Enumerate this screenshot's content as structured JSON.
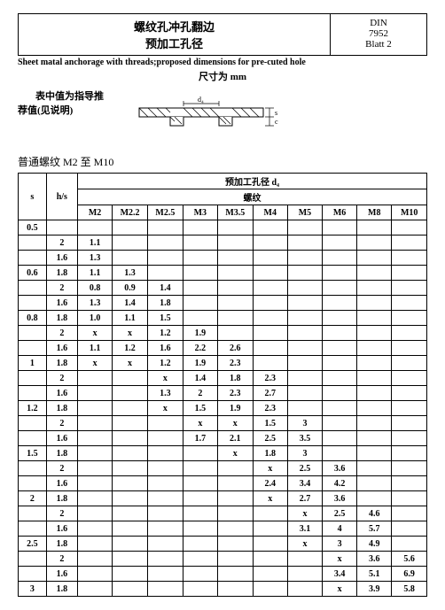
{
  "header": {
    "title_line1": "螺纹孔冲孔翻边",
    "title_line2": "预加工孔径",
    "din": "DIN",
    "num": "7952",
    "blatt": "Blatt 2"
  },
  "subtitle": "Sheet matal anchorage with threads;proposed dimensions   for pre-cuted hole",
  "unit": "尺寸为 mm",
  "note1": "表中值为指导推",
  "note2": "荐值(见说明)",
  "section": "普通螺纹 M2 至 M10",
  "table": {
    "header_main": "预加工孔径 d₄",
    "header_sub": "螺纹",
    "col_s": "s",
    "col_hs": "h/s",
    "sizes": [
      "M2",
      "M2.2",
      "M2.5",
      "M3",
      "M3.5",
      "M4",
      "M5",
      "M6",
      "M8",
      "M10"
    ],
    "rows": [
      {
        "s": "0.5",
        "hs": "",
        "v": [
          "",
          "",
          "",
          "",
          "",
          "",
          "",
          "",
          "",
          ""
        ]
      },
      {
        "s": "",
        "hs": "2",
        "v": [
          "1.1",
          "",
          "",
          "",
          "",
          "",
          "",
          "",
          "",
          ""
        ]
      },
      {
        "s": "",
        "hs": "1.6",
        "v": [
          "1.3",
          "",
          "",
          "",
          "",
          "",
          "",
          "",
          "",
          ""
        ]
      },
      {
        "s": "0.6",
        "hs": "1.8",
        "v": [
          "1.1",
          "1.3",
          "",
          "",
          "",
          "",
          "",
          "",
          "",
          ""
        ]
      },
      {
        "s": "",
        "hs": "2",
        "v": [
          "0.8",
          "0.9",
          "1.4",
          "",
          "",
          "",
          "",
          "",
          "",
          ""
        ]
      },
      {
        "s": "",
        "hs": "1.6",
        "v": [
          "1.3",
          "1.4",
          "1.8",
          "",
          "",
          "",
          "",
          "",
          "",
          ""
        ]
      },
      {
        "s": "0.8",
        "hs": "1.8",
        "v": [
          "1.0",
          "1.1",
          "1.5",
          "",
          "",
          "",
          "",
          "",
          "",
          ""
        ]
      },
      {
        "s": "",
        "hs": "2",
        "v": [
          "x",
          "x",
          "1.2",
          "1.9",
          "",
          "",
          "",
          "",
          "",
          ""
        ]
      },
      {
        "s": "",
        "hs": "1.6",
        "v": [
          "1.1",
          "1.2",
          "1.6",
          "2.2",
          "2.6",
          "",
          "",
          "",
          "",
          ""
        ]
      },
      {
        "s": "1",
        "hs": "1.8",
        "v": [
          "x",
          "x",
          "1.2",
          "1.9",
          "2.3",
          "",
          "",
          "",
          "",
          ""
        ]
      },
      {
        "s": "",
        "hs": "2",
        "v": [
          "",
          "",
          "x",
          "1.4",
          "1.8",
          "2.3",
          "",
          "",
          "",
          ""
        ]
      },
      {
        "s": "",
        "hs": "1.6",
        "v": [
          "",
          "",
          "1.3",
          "2",
          "2.3",
          "2.7",
          "",
          "",
          "",
          ""
        ]
      },
      {
        "s": "1.2",
        "hs": "1.8",
        "v": [
          "",
          "",
          "x",
          "1.5",
          "1.9",
          "2.3",
          "",
          "",
          "",
          ""
        ]
      },
      {
        "s": "",
        "hs": "2",
        "v": [
          "",
          "",
          "",
          "x",
          "x",
          "1.5",
          "3",
          "",
          "",
          ""
        ]
      },
      {
        "s": "",
        "hs": "1.6",
        "v": [
          "",
          "",
          "",
          "1.7",
          "2.1",
          "2.5",
          "3.5",
          "",
          "",
          ""
        ]
      },
      {
        "s": "1.5",
        "hs": "1.8",
        "v": [
          "",
          "",
          "",
          "",
          "x",
          "1.8",
          "3",
          "",
          "",
          ""
        ]
      },
      {
        "s": "",
        "hs": "2",
        "v": [
          "",
          "",
          "",
          "",
          "",
          "x",
          "2.5",
          "3.6",
          "",
          ""
        ]
      },
      {
        "s": "",
        "hs": "1.6",
        "v": [
          "",
          "",
          "",
          "",
          "",
          "2.4",
          "3.4",
          "4.2",
          "",
          ""
        ]
      },
      {
        "s": "2",
        "hs": "1.8",
        "v": [
          "",
          "",
          "",
          "",
          "",
          "x",
          "2.7",
          "3.6",
          "",
          ""
        ]
      },
      {
        "s": "",
        "hs": "2",
        "v": [
          "",
          "",
          "",
          "",
          "",
          "",
          "x",
          "2.5",
          "4.6",
          ""
        ]
      },
      {
        "s": "",
        "hs": "1.6",
        "v": [
          "",
          "",
          "",
          "",
          "",
          "",
          "3.1",
          "4",
          "5.7",
          ""
        ]
      },
      {
        "s": "2.5",
        "hs": "1.8",
        "v": [
          "",
          "",
          "",
          "",
          "",
          "",
          "x",
          "3",
          "4.9",
          ""
        ]
      },
      {
        "s": "",
        "hs": "2",
        "v": [
          "",
          "",
          "",
          "",
          "",
          "",
          "",
          "x",
          "3.6",
          "5.6"
        ]
      },
      {
        "s": "",
        "hs": "1.6",
        "v": [
          "",
          "",
          "",
          "",
          "",
          "",
          "",
          "3.4",
          "5.1",
          "6.9"
        ]
      },
      {
        "s": "3",
        "hs": "1.8",
        "v": [
          "",
          "",
          "",
          "",
          "",
          "",
          "",
          "x",
          "3.9",
          "5.8"
        ]
      }
    ]
  }
}
